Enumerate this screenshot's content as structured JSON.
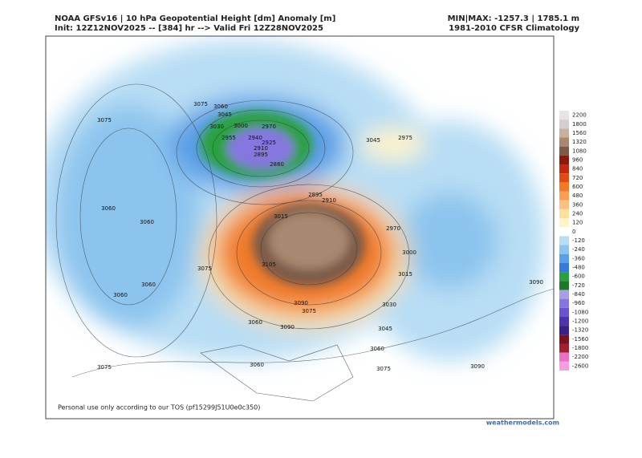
{
  "header": {
    "title": "NOAA GFSv16 | 10 hPa Geopotential Height [dm] Anomaly [m]",
    "subtitle": "Init: 12Z12NOV2025 -- [384] hr --> Valid Fri 12Z28NOV2025",
    "minmax": "MIN|MAX: -1257.3 | 1785.1 m",
    "climatology": "1981-2010 CFSR Climatology"
  },
  "colorbar": {
    "labels": [
      "2200",
      "1800",
      "1560",
      "1320",
      "1080",
      "960",
      "840",
      "720",
      "600",
      "480",
      "360",
      "240",
      "120",
      "0",
      "-120",
      "-240",
      "-360",
      "-480",
      "-600",
      "-720",
      "-840",
      "-960",
      "-1080",
      "-1200",
      "-1320",
      "-1560",
      "-1800",
      "-2200",
      "-2600"
    ],
    "colors": [
      "#e8e4e4",
      "#d8cccc",
      "#c8b0a0",
      "#a88870",
      "#7a5a48",
      "#8a1a10",
      "#c02810",
      "#e04a14",
      "#f07a2a",
      "#f8a050",
      "#fcc080",
      "#fde0a0",
      "#fff4c8",
      "#ffffff",
      "#b8ddf4",
      "#8cc4ee",
      "#5a9ee6",
      "#3a78d8",
      "#2aa040",
      "#1a7a2a",
      "#a6a0e8",
      "#8676e0",
      "#6a52d0",
      "#4a34b0",
      "#3a2080",
      "#7a1020",
      "#a02030",
      "#e870c8",
      "#f4a0e0"
    ]
  },
  "contours": [
    "3075",
    "3060",
    "3045",
    "3030",
    "3000",
    "2970",
    "2955",
    "2940",
    "2925",
    "2910",
    "2895",
    "2880",
    "3075",
    "3060",
    "3060",
    "3060",
    "3060",
    "3075",
    "3015",
    "3105",
    "2895",
    "2910",
    "3045",
    "2975",
    "3000",
    "3015",
    "2970",
    "3030",
    "3045",
    "3060",
    "3075",
    "3090",
    "3090",
    "3060",
    "3075",
    "3090",
    "3075",
    "3060",
    "3090"
  ],
  "footer": {
    "tos": "Personal use only according to our TOS (pf15299J51U0e0c350)",
    "site": "weathermodels.com"
  }
}
